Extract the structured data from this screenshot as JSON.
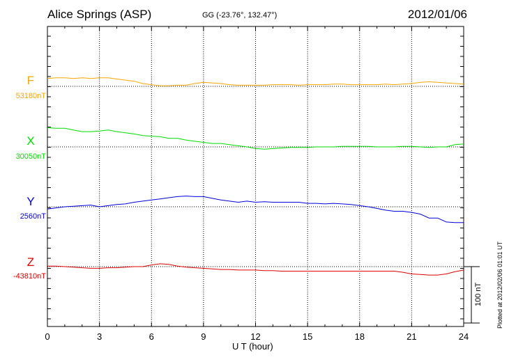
{
  "header": {
    "station": "Alice Springs (ASP)",
    "coords": "GG (-23.76°, 132.47°)",
    "date": "2012/01/06"
  },
  "side_note": "Plotted at 2012/02/06 01:01 UT",
  "chart_data": {
    "type": "line",
    "xlabel": "U T (hour)",
    "xlim": [
      0,
      24
    ],
    "xticks": [
      "0",
      "3",
      "6",
      "9",
      "12",
      "15",
      "18",
      "21",
      "24"
    ],
    "grid": true,
    "scale_bar": {
      "value_nT": 100,
      "label": "100 nT"
    },
    "series": [
      {
        "name": "F",
        "baseline_label": "53180nT",
        "color": "#f5a500",
        "points": [
          [
            0,
            14
          ],
          [
            0.5,
            15
          ],
          [
            1,
            15
          ],
          [
            1.5,
            14
          ],
          [
            2,
            15
          ],
          [
            2.5,
            14
          ],
          [
            3,
            15
          ],
          [
            3.5,
            15
          ],
          [
            4,
            13
          ],
          [
            4.5,
            11
          ],
          [
            5,
            9
          ],
          [
            5.5,
            5
          ],
          [
            6,
            3
          ],
          [
            6.5,
            1
          ],
          [
            7,
            1
          ],
          [
            7.5,
            2
          ],
          [
            8,
            2
          ],
          [
            8.5,
            5
          ],
          [
            9,
            7
          ],
          [
            9.5,
            6
          ],
          [
            10,
            5
          ],
          [
            10.5,
            3
          ],
          [
            11,
            2
          ],
          [
            11.5,
            2
          ],
          [
            12,
            2
          ],
          [
            12.5,
            2
          ],
          [
            13,
            3
          ],
          [
            13.5,
            3
          ],
          [
            14,
            3
          ],
          [
            14.5,
            2
          ],
          [
            15,
            3
          ],
          [
            15.5,
            3
          ],
          [
            16,
            3
          ],
          [
            16.5,
            4
          ],
          [
            17,
            4
          ],
          [
            17.5,
            3
          ],
          [
            18,
            3
          ],
          [
            18.5,
            3
          ],
          [
            19,
            3
          ],
          [
            19.5,
            4
          ],
          [
            20,
            3
          ],
          [
            20.5,
            4
          ],
          [
            21,
            5
          ],
          [
            21.5,
            7
          ],
          [
            22,
            8
          ],
          [
            22.5,
            7
          ],
          [
            23,
            6
          ],
          [
            23.5,
            5
          ],
          [
            24,
            4
          ]
        ]
      },
      {
        "name": "X",
        "baseline_label": "30050nT",
        "color": "#00dd00",
        "points": [
          [
            0,
            34
          ],
          [
            0.5,
            33
          ],
          [
            1,
            33
          ],
          [
            1.5,
            30
          ],
          [
            2,
            27
          ],
          [
            2.5,
            27
          ],
          [
            3,
            28
          ],
          [
            3.5,
            30
          ],
          [
            4,
            27
          ],
          [
            4.5,
            25
          ],
          [
            5,
            23
          ],
          [
            5.5,
            20
          ],
          [
            6,
            19
          ],
          [
            6.5,
            18
          ],
          [
            7,
            15
          ],
          [
            7.5,
            15
          ],
          [
            8,
            12
          ],
          [
            8.5,
            10
          ],
          [
            9,
            8
          ],
          [
            9.5,
            6
          ],
          [
            10,
            6
          ],
          [
            10.5,
            4
          ],
          [
            11,
            2
          ],
          [
            11.5,
            0
          ],
          [
            12,
            -3
          ],
          [
            12.5,
            -4
          ],
          [
            13,
            -3
          ],
          [
            13.5,
            -2
          ],
          [
            14,
            -1
          ],
          [
            14.5,
            -1
          ],
          [
            15,
            -1
          ],
          [
            15.5,
            0
          ],
          [
            16,
            0
          ],
          [
            16.5,
            0
          ],
          [
            17,
            1
          ],
          [
            17.5,
            1
          ],
          [
            18,
            1
          ],
          [
            18.5,
            1
          ],
          [
            19,
            0
          ],
          [
            19.5,
            0
          ],
          [
            20,
            0
          ],
          [
            20.5,
            1
          ],
          [
            21,
            1
          ],
          [
            21.5,
            0
          ],
          [
            22,
            -1
          ],
          [
            22.5,
            0
          ],
          [
            23,
            0
          ],
          [
            23.5,
            4
          ],
          [
            24,
            5
          ]
        ]
      },
      {
        "name": "Y",
        "baseline_label": "2560nT",
        "color": "#0000dd",
        "points": [
          [
            0,
            -4
          ],
          [
            0.5,
            -2
          ],
          [
            1,
            0
          ],
          [
            1.5,
            1
          ],
          [
            2,
            2
          ],
          [
            2.5,
            3
          ],
          [
            3,
            0
          ],
          [
            3.5,
            2
          ],
          [
            4,
            4
          ],
          [
            4.5,
            5
          ],
          [
            5,
            8
          ],
          [
            5.5,
            10
          ],
          [
            6,
            12
          ],
          [
            6.5,
            14
          ],
          [
            7,
            16
          ],
          [
            7.5,
            18
          ],
          [
            8,
            19
          ],
          [
            8.5,
            18
          ],
          [
            9,
            18
          ],
          [
            9.5,
            15
          ],
          [
            10,
            12
          ],
          [
            10.5,
            10
          ],
          [
            11,
            8
          ],
          [
            11.5,
            10
          ],
          [
            12,
            8
          ],
          [
            12.5,
            9
          ],
          [
            13,
            8
          ],
          [
            13.5,
            8
          ],
          [
            14,
            8
          ],
          [
            14.5,
            8
          ],
          [
            15,
            6
          ],
          [
            15.5,
            6
          ],
          [
            16,
            5
          ],
          [
            16.5,
            6
          ],
          [
            17,
            5
          ],
          [
            17.5,
            4
          ],
          [
            18,
            2
          ],
          [
            18.5,
            0
          ],
          [
            19,
            -3
          ],
          [
            19.5,
            -6
          ],
          [
            20,
            -8
          ],
          [
            20.5,
            -8
          ],
          [
            21,
            -10
          ],
          [
            21.5,
            -13
          ],
          [
            22,
            -20
          ],
          [
            22.5,
            -20
          ],
          [
            23,
            -27
          ],
          [
            23.5,
            -28
          ],
          [
            24,
            -28
          ]
        ]
      },
      {
        "name": "Z",
        "baseline_label": "-43810nT",
        "color": "#dd0000",
        "points": [
          [
            0,
            1
          ],
          [
            0.5,
            1
          ],
          [
            1,
            0
          ],
          [
            1.5,
            -1
          ],
          [
            2,
            -2
          ],
          [
            2.5,
            -3
          ],
          [
            3,
            -3
          ],
          [
            3.5,
            -2
          ],
          [
            4,
            -2
          ],
          [
            4.5,
            -1
          ],
          [
            5,
            0
          ],
          [
            5.5,
            0
          ],
          [
            6,
            3
          ],
          [
            6.5,
            5
          ],
          [
            7,
            4
          ],
          [
            7.5,
            1
          ],
          [
            8,
            -1
          ],
          [
            8.5,
            -2
          ],
          [
            9,
            -3
          ],
          [
            9.5,
            -4
          ],
          [
            10,
            -5
          ],
          [
            10.5,
            -5
          ],
          [
            11,
            -6
          ],
          [
            11.5,
            -6
          ],
          [
            12,
            -6
          ],
          [
            12.5,
            -7
          ],
          [
            13,
            -7
          ],
          [
            13.5,
            -8
          ],
          [
            14,
            -8
          ],
          [
            14.5,
            -8
          ],
          [
            15,
            -8
          ],
          [
            15.5,
            -8
          ],
          [
            16,
            -8
          ],
          [
            16.5,
            -8
          ],
          [
            17,
            -8
          ],
          [
            17.5,
            -8
          ],
          [
            18,
            -8
          ],
          [
            18.5,
            -8
          ],
          [
            19,
            -8
          ],
          [
            19.5,
            -8
          ],
          [
            20,
            -8
          ],
          [
            20.5,
            -10
          ],
          [
            21,
            -13
          ],
          [
            21.5,
            -14
          ],
          [
            22,
            -15
          ],
          [
            22.5,
            -15
          ],
          [
            23,
            -13
          ],
          [
            23.5,
            -9
          ],
          [
            24,
            -6
          ]
        ]
      }
    ]
  }
}
